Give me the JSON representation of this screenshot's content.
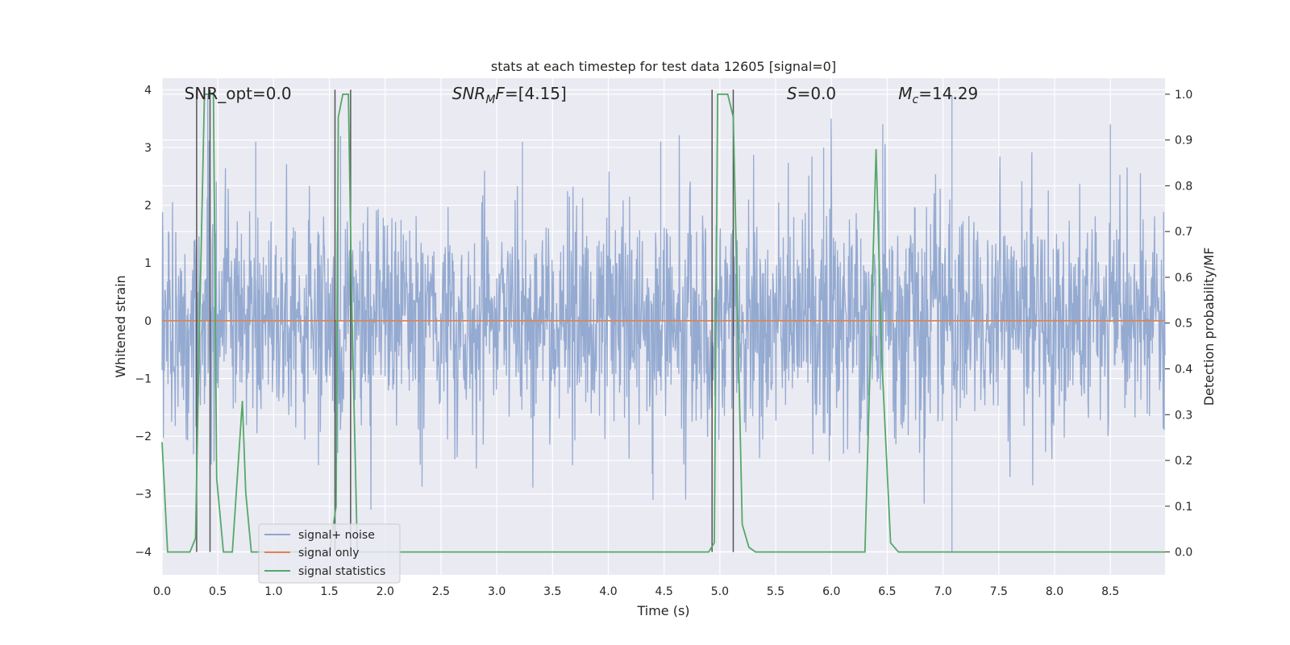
{
  "chart_data": {
    "type": "line",
    "title": "stats at each timestep for test data 12605 [signal=0]",
    "xlabel": "Time (s)",
    "ylabel_left": "Whitened strain",
    "ylabel_right": "Detection probability/MF",
    "xlim": [
      0.0,
      8.99
    ],
    "ylim_left": [
      -4.4,
      4.2
    ],
    "ylim_right": [
      -0.05,
      1.035
    ],
    "x_ticks": [
      0.0,
      0.5,
      1.0,
      1.5,
      2.0,
      2.5,
      3.0,
      3.5,
      4.0,
      4.5,
      5.0,
      5.5,
      6.0,
      6.5,
      7.0,
      7.5,
      8.0,
      8.5
    ],
    "x_tick_labels": [
      "0.0",
      "0.5",
      "1.0",
      "1.5",
      "2.0",
      "2.5",
      "3.0",
      "3.5",
      "4.0",
      "4.5",
      "5.0",
      "5.5",
      "6.0",
      "6.5",
      "7.0",
      "7.5",
      "8.0",
      "8.5"
    ],
    "y_left_ticks": [
      4,
      3,
      2,
      1,
      0,
      -1,
      -2,
      -3,
      -4
    ],
    "y_left_tick_labels": [
      "4",
      "3",
      "2",
      "1",
      "0",
      "−1",
      "−2",
      "−3",
      "−4"
    ],
    "y_right_ticks": [
      1.0,
      0.9,
      0.8,
      0.7,
      0.6,
      0.5,
      0.4,
      0.3,
      0.2,
      0.1,
      0.0
    ],
    "y_right_tick_labels": [
      "1.0",
      "0.9",
      "0.8",
      "0.7",
      "0.6",
      "0.5",
      "0.4",
      "0.3",
      "0.2",
      "0.1",
      "0.0"
    ],
    "grid": true,
    "legend_position": "lower-left",
    "series": [
      {
        "name": "signal+ noise",
        "axis": "left",
        "style": "dense noise trace, approx. within [-4.0, 3.9], mostly within [-1.7, 1.5]",
        "notable_peaks": [
          {
            "x": 0.41,
            "y": 3.9
          },
          {
            "x": 0.84,
            "y": 3.1
          },
          {
            "x": 1.6,
            "y": 3.2
          },
          {
            "x": 3.23,
            "y": 3.1
          },
          {
            "x": 4.47,
            "y": 3.1
          },
          {
            "x": 5.93,
            "y": 3.0
          },
          {
            "x": 6.46,
            "y": 3.4
          },
          {
            "x": 7.08,
            "y": 3.9
          },
          {
            "x": 8.5,
            "y": 3.4
          },
          {
            "x": 7.08,
            "y": -4.0
          },
          {
            "x": 1.56,
            "y": -3.0
          },
          {
            "x": 4.4,
            "y": -3.1
          }
        ]
      },
      {
        "name": "signal only",
        "axis": "left",
        "x": [
          0.0,
          8.99
        ],
        "y": [
          0.0,
          0.0
        ]
      },
      {
        "name": "signal statistics",
        "axis": "right",
        "x": [
          0.0,
          0.05,
          0.25,
          0.3,
          0.33,
          0.38,
          0.42,
          0.46,
          0.49,
          0.55,
          0.63,
          0.72,
          0.75,
          0.8,
          0.84,
          0.92,
          1.5,
          1.56,
          1.58,
          1.62,
          1.67,
          1.7,
          1.75,
          2.0,
          4.4,
          4.9,
          4.95,
          4.98,
          5.02,
          5.07,
          5.12,
          5.2,
          5.26,
          5.32,
          6.3,
          6.4,
          6.45,
          6.53,
          6.6,
          6.8,
          8.99
        ],
        "y": [
          0.24,
          0.0,
          0.0,
          0.03,
          0.43,
          1.0,
          1.0,
          1.0,
          0.16,
          0.0,
          0.0,
          0.33,
          0.13,
          0.0,
          0.0,
          0.0,
          0.0,
          0.1,
          0.95,
          1.0,
          1.0,
          0.55,
          0.0,
          0.0,
          0.0,
          0.0,
          0.02,
          1.0,
          1.0,
          1.0,
          0.95,
          0.06,
          0.01,
          0.0,
          0.0,
          0.88,
          0.43,
          0.02,
          0.0,
          0.0,
          0.0
        ]
      }
    ],
    "vertical_markers_x": [
      0.31,
      0.43,
      1.55,
      1.69,
      4.93,
      5.12
    ],
    "annotations": [
      {
        "id": "snr-opt",
        "text": "SNR_opt=0.0",
        "x": 0.2
      },
      {
        "id": "snr-mf",
        "text_parts": [
          {
            "t": "SNR",
            "i": true
          },
          {
            "t": "M",
            "i": true,
            "sub": true
          },
          {
            "t": "F",
            "i": true
          },
          {
            "t": "=[4.15]",
            "i": false
          }
        ],
        "x": 2.6
      },
      {
        "id": "s-stat",
        "text_parts": [
          {
            "t": "S",
            "i": true
          },
          {
            "t": "=0.0",
            "i": false
          }
        ],
        "x": 5.6
      },
      {
        "id": "chirp-mass",
        "text_parts": [
          {
            "t": "M",
            "i": true
          },
          {
            "t": "c",
            "i": true,
            "sub": true
          },
          {
            "t": "=14.29",
            "i": false
          }
        ],
        "x": 6.6
      }
    ],
    "colors": {
      "plot_background": "#eaeaf2",
      "grid": "#ffffff",
      "signal_noise": "#8fa6cf",
      "signal_only": "#dd8452",
      "signal_statistics": "#55a868",
      "vertical_markers": "#555555"
    }
  }
}
